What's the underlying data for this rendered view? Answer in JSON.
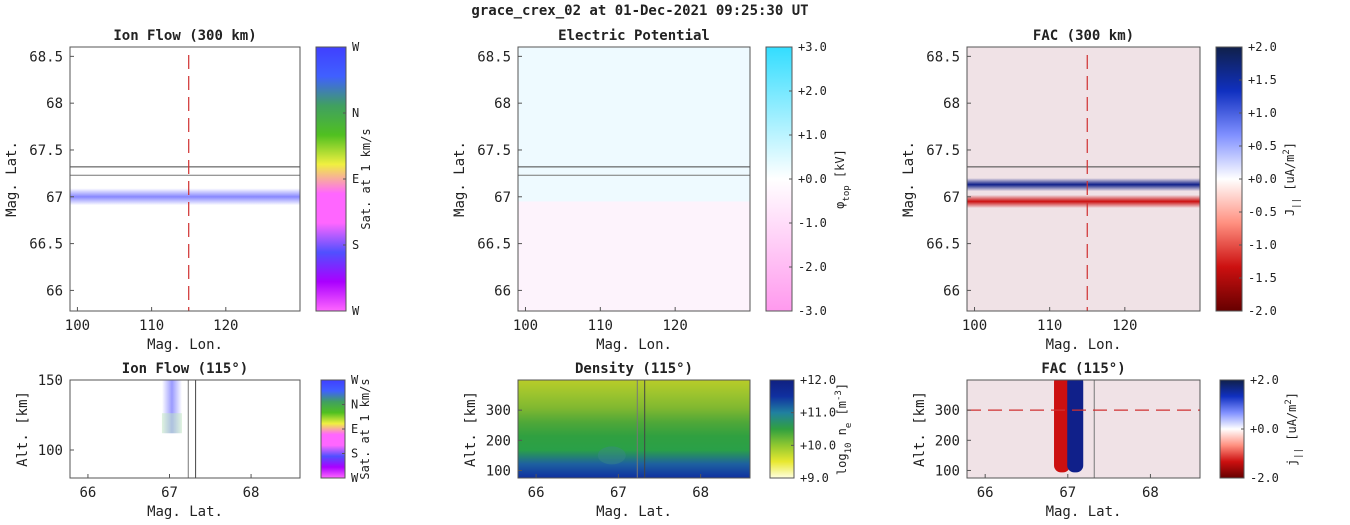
{
  "figure_title": "grace_crex_02 at 01-Dec-2021 09:25:30 UT",
  "chart_data": [
    {
      "id": "ion_flow_map",
      "type": "heatmap",
      "title": "Ion Flow (300 km)",
      "xlabel": "Mag. Lon.",
      "ylabel": "Mag. Lat.",
      "xlim": [
        99,
        130
      ],
      "ylim": [
        65.78,
        68.6
      ],
      "xticks": [
        "100",
        "110",
        "120"
      ],
      "yticks": [
        "68.5",
        "68",
        "67.5",
        "67",
        "66.5",
        "66"
      ],
      "band": {
        "lat_center": 67.0,
        "lat_halfwidth": 0.09,
        "color": "#7a7aff",
        "opacity": 0.9
      },
      "lines": {
        "hlines": [
          67.32,
          67.23
        ],
        "vline_lon": 115
      },
      "colorbar": {
        "label": "Sat. at 1 km/s",
        "ticks": [
          "W",
          "N",
          "E",
          "S",
          "W"
        ],
        "colors": [
          "#ff66ff",
          "#aa00ff",
          "#5050ff",
          "#ff66ff",
          "#ff66ff",
          "#f0f040",
          "#50c020",
          "#40a060",
          "#4060ff",
          "#4040ff"
        ]
      }
    },
    {
      "id": "potential_map",
      "type": "heatmap",
      "title": "Electric Potential",
      "xlabel": "Mag. Lon.",
      "ylabel": "Mag. Lat.",
      "xlim": [
        99,
        130
      ],
      "ylim": [
        65.78,
        68.6
      ],
      "xticks": [
        "100",
        "110",
        "120"
      ],
      "yticks": [
        "68.5",
        "68",
        "67.5",
        "67",
        "66.5",
        "66"
      ],
      "upper_color": "#eefaff",
      "lower_color": "#fdf3fc",
      "split_lat": 66.95,
      "lines": {
        "hlines": [
          67.32,
          67.23
        ]
      },
      "colorbar": {
        "label": "φ",
        "label_sub": "top",
        "label_unit": " [kV]",
        "ticks": [
          "+3.0",
          "+2.0",
          "+1.0",
          "+0.0",
          "-1.0",
          "-2.0",
          "-3.0"
        ],
        "colors": [
          "#ff99ee",
          "#ffffff",
          "#33ddff"
        ]
      }
    },
    {
      "id": "fac_map",
      "type": "heatmap",
      "title": "FAC (300 km)",
      "xlabel": "Mag. Lon.",
      "ylabel": "Mag. Lat.",
      "xlim": [
        99,
        130
      ],
      "ylim": [
        65.78,
        68.6
      ],
      "xticks": [
        "100",
        "110",
        "120"
      ],
      "yticks": [
        "68.5",
        "68",
        "67.5",
        "67",
        "66.5",
        "66"
      ],
      "background": "#f0e2e6",
      "bands": [
        {
          "lat_center": 67.13,
          "lat_halfwidth": 0.07,
          "color": "#10208a"
        },
        {
          "lat_center": 66.95,
          "lat_halfwidth": 0.07,
          "color": "#cc1010"
        }
      ],
      "lines": {
        "hlines": [
          67.32
        ],
        "vline_lon": 115
      },
      "colorbar": {
        "label": "J",
        "label_sub": "||",
        "label_unit": " [uA/m",
        "label_sup": "2",
        "label_end": "]",
        "ticks": [
          "+2.0",
          "+1.5",
          "+1.0",
          "+0.5",
          "+0.0",
          "-0.5",
          "-1.0",
          "-1.5",
          "-2.0"
        ],
        "colors": [
          "#660000",
          "#cc1010",
          "#ff9080",
          "#ffffff",
          "#8090ff",
          "#1030c0",
          "#10204a"
        ]
      }
    },
    {
      "id": "ion_flow_profile",
      "type": "heatmap",
      "title": "Ion Flow (115°)",
      "xlabel": "Mag. Lat.",
      "ylabel": "Alt. [km]",
      "xlim": [
        65.78,
        68.6
      ],
      "ylim": [
        80,
        150
      ],
      "xticks": [
        "66",
        "67",
        "68"
      ],
      "yticks": [
        "150",
        "100"
      ],
      "column": {
        "lat_center": 67.03,
        "alt_top": 150,
        "alt_bottom": 112,
        "color": "#8888ff"
      },
      "lines": {
        "vlines": [
          67.23,
          67.32
        ]
      },
      "colorbar": {
        "label": "Sat. at 1 km/s",
        "ticks": [
          "W",
          "N",
          "E",
          "S",
          "W"
        ],
        "colors": [
          "#ff66ff",
          "#aa00ff",
          "#5050ff",
          "#ff66ff",
          "#ff66ff",
          "#f0f040",
          "#50c020",
          "#40a060",
          "#4060ff",
          "#4040ff"
        ]
      }
    },
    {
      "id": "density_profile",
      "type": "heatmap",
      "title": "Density (115°)",
      "xlabel": "Mag. Lat.",
      "ylabel": "Alt. [km]",
      "xlim": [
        65.78,
        68.6
      ],
      "ylim": [
        75,
        400
      ],
      "xticks": [
        "66",
        "67",
        "68"
      ],
      "yticks": [
        "300",
        "200",
        "100"
      ],
      "lines": {
        "vlines": [
          67.23,
          67.32
        ]
      },
      "colorbar": {
        "label": "log",
        "label_sub": "10",
        "label_unit": " n",
        "label_sub2": "e",
        "label_mid": " [m",
        "label_sup": "-3",
        "label_end": "]",
        "ticks": [
          "+12.0",
          "+11.0",
          "+10.0",
          "+9.0"
        ],
        "colors": [
          "#ffffe0",
          "#e8e830",
          "#90c830",
          "#30a040",
          "#2080a0",
          "#1030a0",
          "#102080"
        ]
      }
    },
    {
      "id": "fac_profile",
      "type": "heatmap",
      "title": "FAC (115°)",
      "xlabel": "Mag. Lat.",
      "ylabel": "Alt. [km]",
      "xlim": [
        65.78,
        68.6
      ],
      "ylim": [
        75,
        400
      ],
      "xticks": [
        "66",
        "67",
        "68"
      ],
      "yticks": [
        "300",
        "200",
        "100"
      ],
      "background": "#f0e2e6",
      "columns": [
        {
          "lat_center": 66.93,
          "color": "#cc1010"
        },
        {
          "lat_center": 67.09,
          "color": "#10208a"
        }
      ],
      "alt_top": 400,
      "alt_bottom": 120,
      "lines": {
        "vlines": [
          67.32
        ],
        "hline_alt": 300
      },
      "colorbar": {
        "label": "j",
        "label_sub": "||",
        "label_unit": " [uA/m",
        "label_sup": "2",
        "label_end": "]",
        "ticks": [
          "+2.0",
          "+0.0",
          "-2.0"
        ],
        "colors": [
          "#660000",
          "#cc1010",
          "#ff9080",
          "#ffffff",
          "#8090ff",
          "#1030c0",
          "#10204a"
        ]
      }
    }
  ]
}
